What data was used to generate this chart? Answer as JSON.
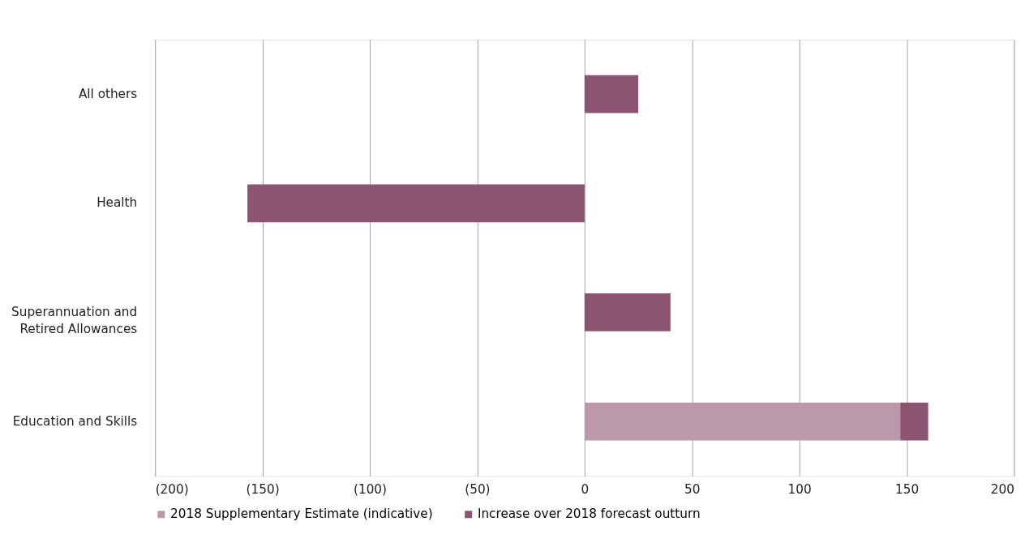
{
  "chart_data": {
    "type": "bar",
    "orientation": "horizontal",
    "stacked": true,
    "categories": [
      "All others",
      "Health",
      "Superannuation and Retired Allowances",
      "Education and Skills"
    ],
    "series": [
      {
        "name": "2018 Supplementary Estimate (indicative)",
        "color": "#bb98aa",
        "values": [
          null,
          null,
          null,
          147
        ]
      },
      {
        "name": "Increase over 2018 forecast outturn",
        "color": "#8c5470",
        "values": [
          25,
          -157,
          40,
          13
        ]
      }
    ],
    "xlim": [
      -200,
      200
    ],
    "xticks": [
      {
        "value": -200,
        "label": "(200)"
      },
      {
        "value": -150,
        "label": "(150)"
      },
      {
        "value": -100,
        "label": "(100)"
      },
      {
        "value": -50,
        "label": "(50)"
      },
      0,
      50,
      100,
      150,
      200
    ],
    "grid": "x",
    "legend": "bottom"
  }
}
